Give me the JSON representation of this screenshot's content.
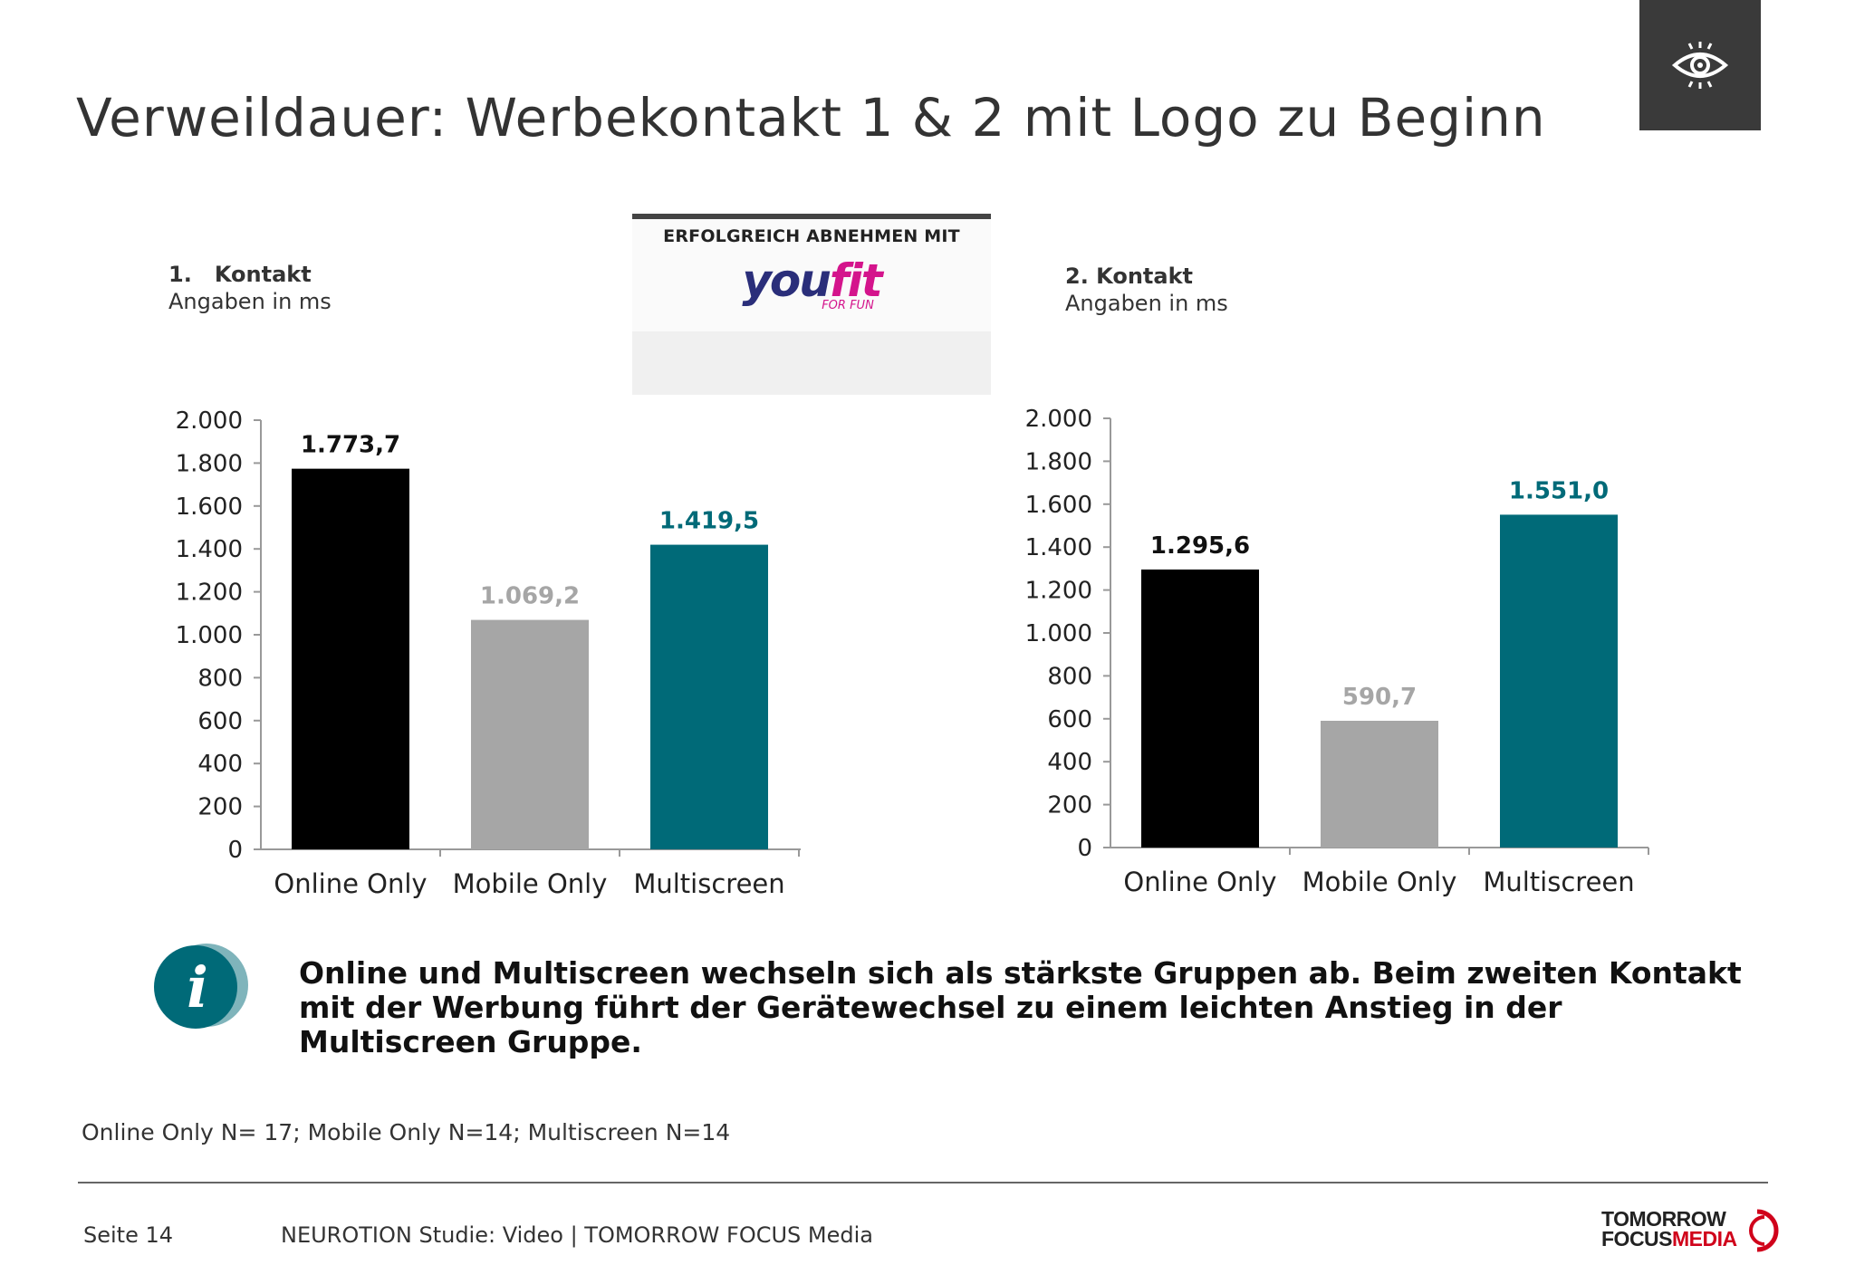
{
  "title": "Verweildauer: Werbekontakt 1 & 2 mit Logo zu Beginn",
  "icons": {
    "header_icon": "eye-icon",
    "info_icon": "info-icon"
  },
  "colors": {
    "online_only": "#000000",
    "mobile_only": "#a6a6a6",
    "multiscreen": "#006a78",
    "accent_teal": "#006a78",
    "brand_red": "#d0021b"
  },
  "ad_preview": {
    "headline": "ERFOLGREICH ABNEHMEN MIT",
    "logo_text": "youfit",
    "logo_tagline": "FOR FUN"
  },
  "chart_data": [
    {
      "type": "bar",
      "heading": "1.   Kontakt",
      "subheading": "Angaben in ms",
      "categories": [
        "Online Only",
        "Mobile Only",
        "Multiscreen"
      ],
      "values": [
        1773.7,
        1069.2,
        1419.5
      ],
      "value_labels": [
        "1.773,7",
        "1.069,2",
        "1.419,5"
      ],
      "bar_colors": [
        "#000000",
        "#a6a6a6",
        "#006a78"
      ],
      "label_colors": [
        "#111111",
        "#a6a6a6",
        "#006a78"
      ],
      "ylim": [
        0,
        2000
      ],
      "yticks": [
        0,
        200,
        400,
        600,
        800,
        1000,
        1200,
        1400,
        1600,
        1800,
        2000
      ],
      "ytick_labels": [
        "0",
        "200",
        "400",
        "600",
        "800",
        "1.000",
        "1.200",
        "1.400",
        "1.600",
        "1.800",
        "2.000"
      ],
      "grid": false
    },
    {
      "type": "bar",
      "heading": "2. Kontakt",
      "subheading": "Angaben in ms",
      "categories": [
        "Online Only",
        "Mobile Only",
        "Multiscreen"
      ],
      "values": [
        1295.6,
        590.7,
        1551.0
      ],
      "value_labels": [
        "1.295,6",
        "590,7",
        "1.551,0"
      ],
      "bar_colors": [
        "#000000",
        "#a6a6a6",
        "#006a78"
      ],
      "label_colors": [
        "#111111",
        "#a6a6a6",
        "#006a78"
      ],
      "ylim": [
        0,
        2000
      ],
      "yticks": [
        0,
        200,
        400,
        600,
        800,
        1000,
        1200,
        1400,
        1600,
        1800,
        2000
      ],
      "ytick_labels": [
        "0",
        "200",
        "400",
        "600",
        "800",
        "1.000",
        "1.200",
        "1.400",
        "1.600",
        "1.800",
        "2.000"
      ],
      "grid": false
    }
  ],
  "info_text": "Online und Multiscreen wechseln sich als stärkste Gruppen ab. Beim zweiten Kontakt mit der Werbung führt der Gerätewechsel zu einem leichten Anstieg in der Multiscreen Gruppe.",
  "sample_note": "Online Only N= 17; Mobile Only N=14; Multiscreen N=14",
  "footer": {
    "page": "Seite 14",
    "source": "NEUROTION Studie: Video | TOMORROW FOCUS Media",
    "brand_line1": "TOMORROW",
    "brand_line2_a": "FOCUS",
    "brand_line2_b": "MEDIA"
  }
}
